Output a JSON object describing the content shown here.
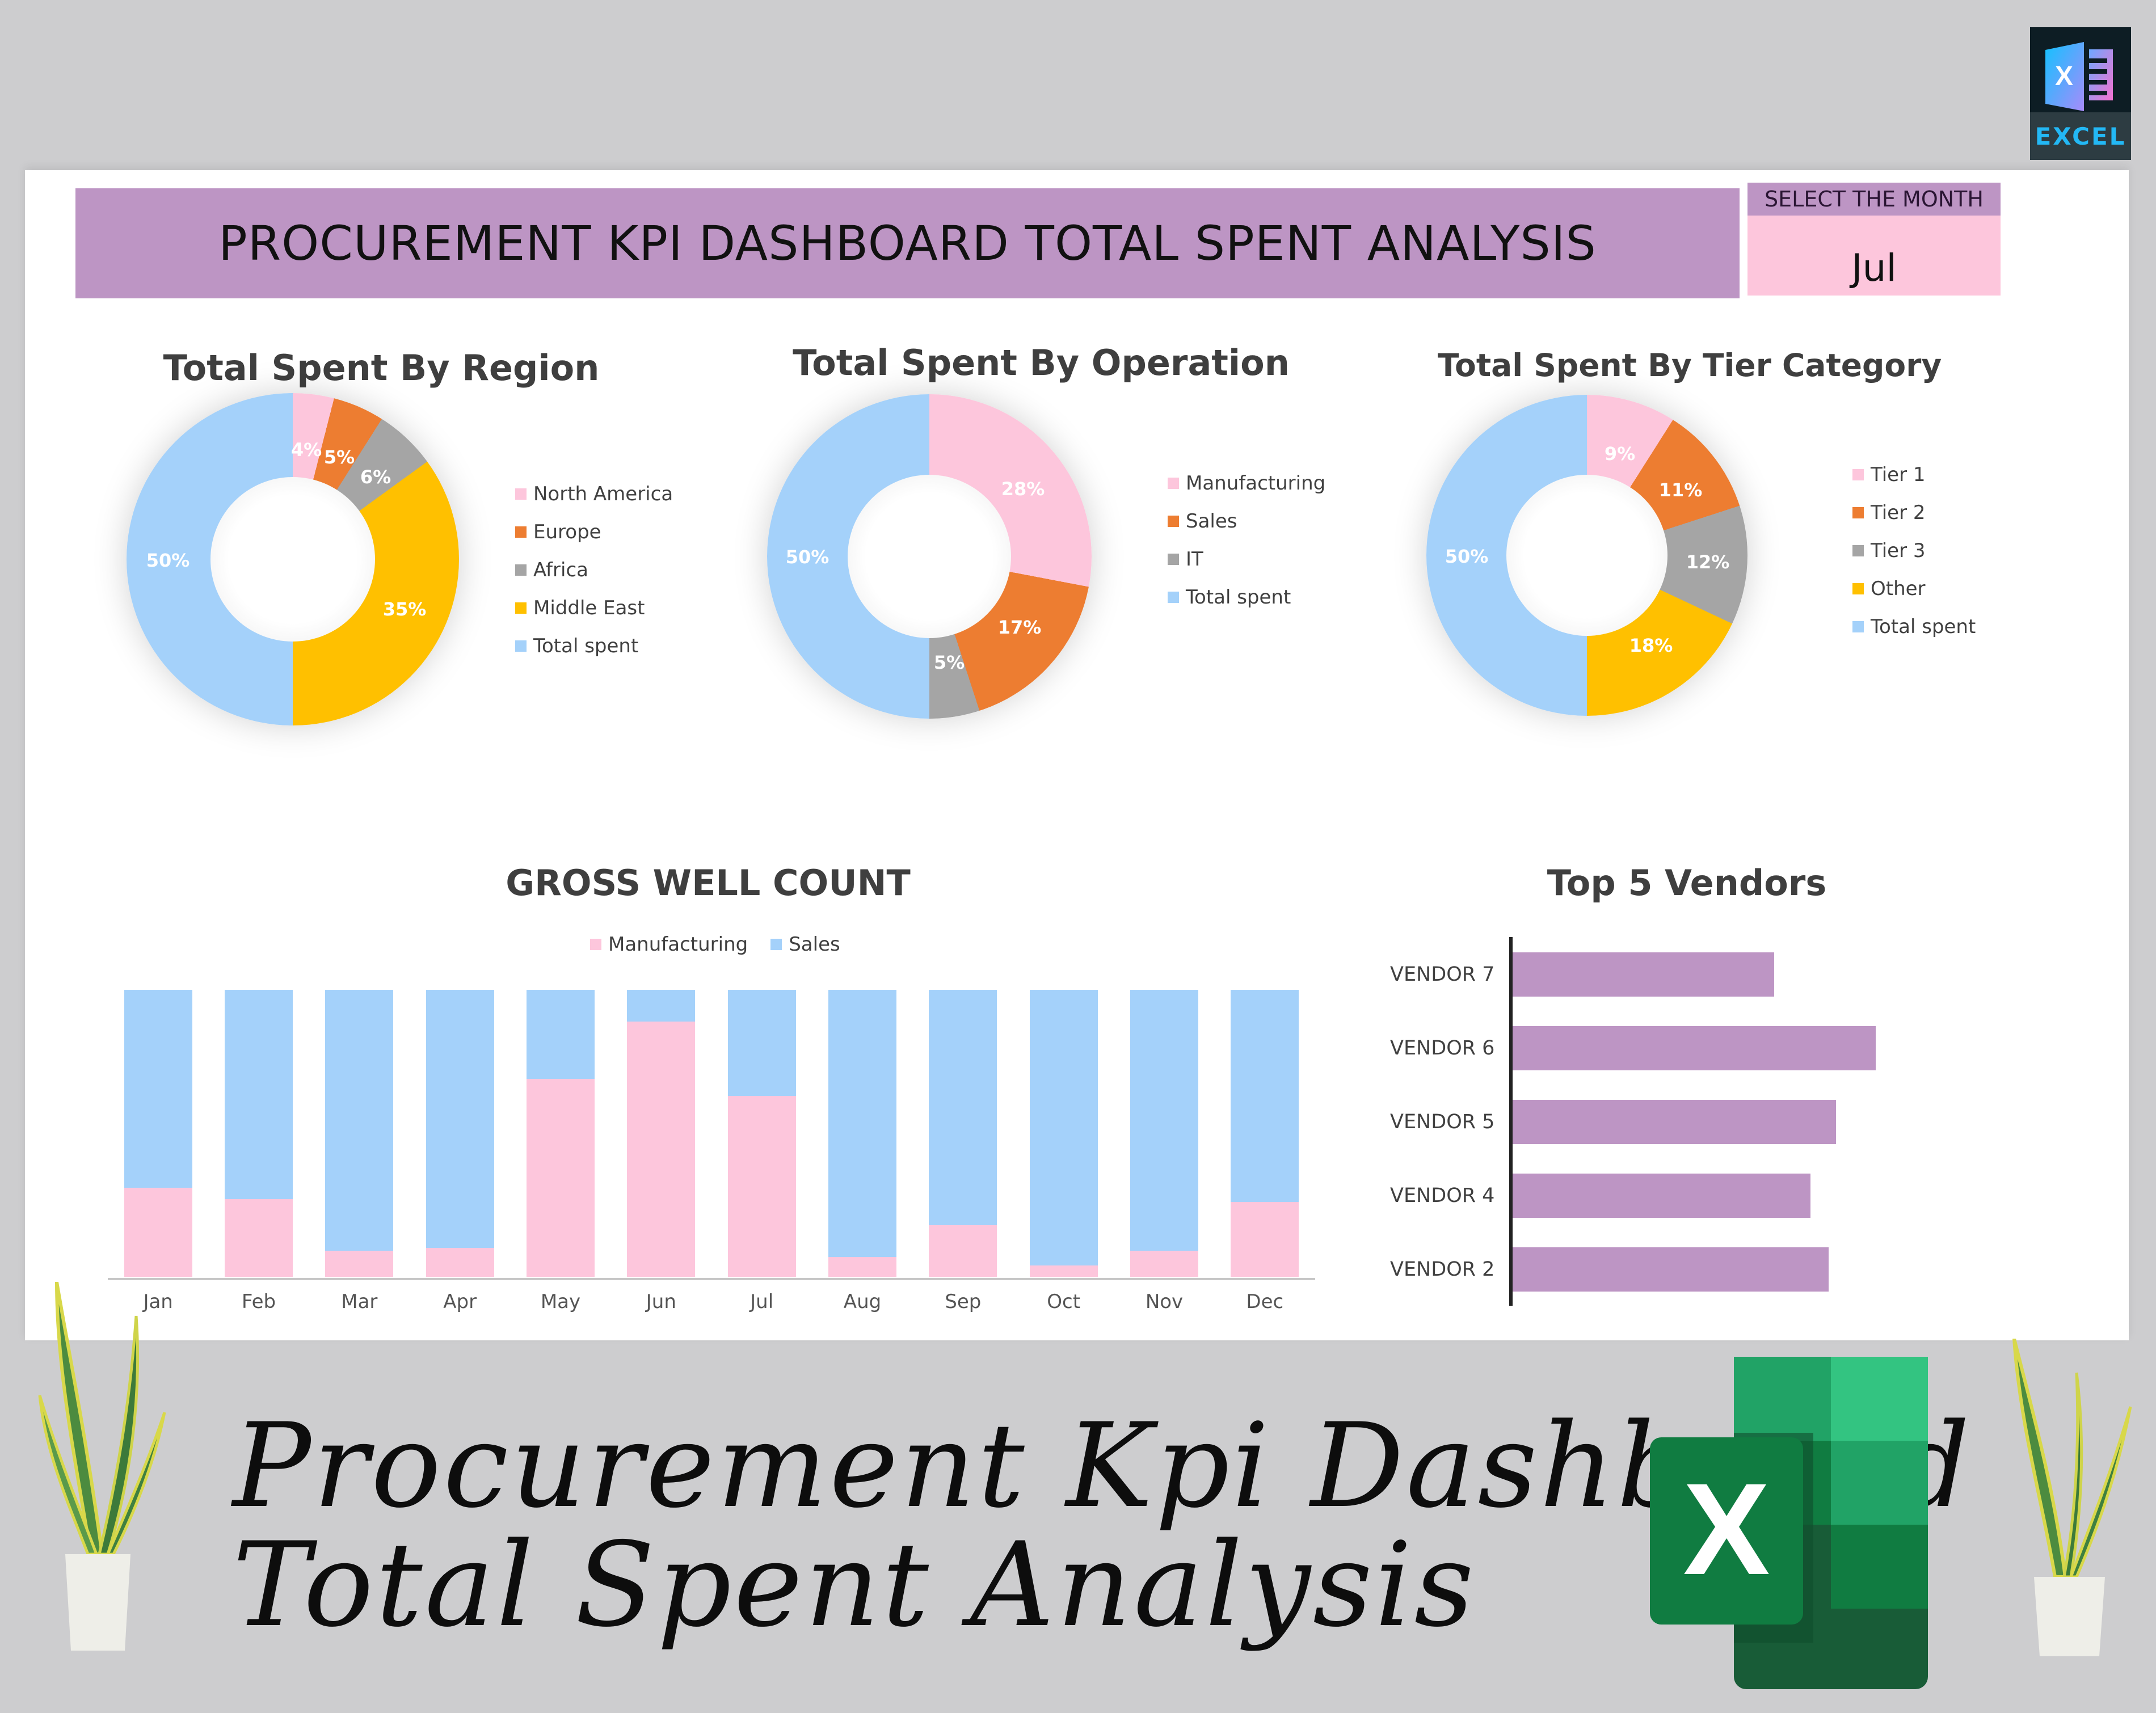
{
  "header": {
    "title": "PROCUREMENT KPI DASHBOARD TOTAL SPENT ANALYSIS"
  },
  "month_selector": {
    "label": "SELECT THE MONTH",
    "value": "Jul"
  },
  "badge": {
    "label": "EXCEL",
    "icon": "excel-file-icon"
  },
  "footer": {
    "line1": "Procurement Kpi Dashboard",
    "line2": "Total Spent Analysis",
    "logo_icon": "microsoft-excel-logo"
  },
  "colors": {
    "header_purple": "#bd95c4",
    "month_pink": "#fdc6dc",
    "pink": "#fdc6dc",
    "orange": "#ed7d31",
    "gray": "#a5a5a5",
    "yellow": "#ffc000",
    "light_blue": "#a4d1fa",
    "vendor_purple": "#bd95c4",
    "background": "#cdcdcf"
  },
  "chart_data": [
    {
      "type": "pie",
      "variant": "doughnut",
      "title": "Total Spent By Region",
      "categories": [
        "North America",
        "Europe",
        "Africa",
        "Middle East",
        "Total spent"
      ],
      "values": [
        4,
        5,
        6,
        35,
        50
      ],
      "labels": [
        "4%",
        "5%",
        "6%",
        "35%",
        "50%"
      ],
      "colors": [
        "#fdc6dc",
        "#ed7d31",
        "#a5a5a5",
        "#ffc000",
        "#a4d1fa"
      ],
      "legend_position": "right"
    },
    {
      "type": "pie",
      "variant": "doughnut",
      "title": "Total Spent By Operation",
      "categories": [
        "Manufacturing",
        "Sales",
        "IT",
        "Total spent"
      ],
      "values": [
        28,
        17,
        5,
        50
      ],
      "labels": [
        "28%",
        "17%",
        "5%",
        "50%"
      ],
      "colors": [
        "#fdc6dc",
        "#ed7d31",
        "#a5a5a5",
        "#a4d1fa"
      ],
      "legend_position": "right"
    },
    {
      "type": "pie",
      "variant": "doughnut",
      "title": "Total Spent By Tier Category",
      "categories": [
        "Tier 1",
        "Tier 2",
        "Tier 3",
        "Other",
        "Total spent"
      ],
      "values": [
        9,
        11,
        12,
        18,
        50
      ],
      "labels": [
        "9%",
        "11%",
        "12%",
        "18%",
        "50%"
      ],
      "colors": [
        "#fdc6dc",
        "#ed7d31",
        "#a5a5a5",
        "#ffc000",
        "#a4d1fa"
      ],
      "legend_position": "right"
    },
    {
      "type": "bar",
      "variant": "100% stacked column",
      "title": "GROSS WELL COUNT",
      "categories": [
        "Jan",
        "Feb",
        "Mar",
        "Apr",
        "May",
        "Jun",
        "Jul",
        "Aug",
        "Sep",
        "Oct",
        "Nov",
        "Dec"
      ],
      "series": [
        {
          "name": "Manufacturing",
          "color": "#fdc6dc",
          "values": [
            31,
            27,
            9,
            10,
            69,
            89,
            63,
            7,
            18,
            4,
            9,
            26
          ]
        },
        {
          "name": "Sales",
          "color": "#a4d1fa",
          "values": [
            69,
            73,
            91,
            90,
            31,
            11,
            37,
            93,
            82,
            96,
            91,
            74
          ]
        }
      ],
      "xlabel": "",
      "ylabel": "",
      "ylim": [
        0,
        100
      ],
      "grid": false,
      "legend_position": "top"
    },
    {
      "type": "bar",
      "variant": "horizontal",
      "title": "Top 5 Vendors",
      "categories": [
        "VENDOR 7",
        "VENDOR 6",
        "VENDOR 5",
        "VENDOR 4",
        "VENDOR 2"
      ],
      "values": [
        72,
        100,
        89,
        82,
        87
      ],
      "color": "#bd95c4",
      "note": "relative bar lengths (no axis values shown)",
      "grid": false
    }
  ]
}
